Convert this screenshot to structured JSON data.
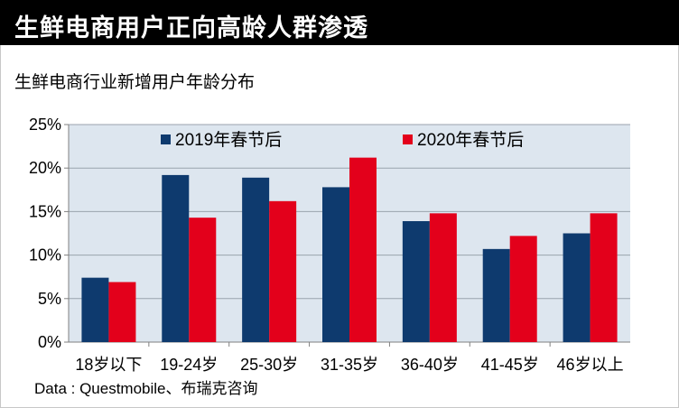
{
  "header": {
    "title": "生鲜电商用户正向高龄人群渗透"
  },
  "source": "Data : Questmobile、布瑞克咨询",
  "colors": {
    "series_2019": "#0e3a6e",
    "series_2020": "#e3001b",
    "plot_bg": "#dde6ef"
  },
  "chart_data": {
    "type": "bar",
    "title": "生鲜电商行业新增用户年龄分布",
    "xlabel": "",
    "ylabel": "",
    "categories": [
      "18岁以下",
      "19-24岁",
      "25-30岁",
      "31-35岁",
      "36-40岁",
      "41-45岁",
      "46岁以上"
    ],
    "series": [
      {
        "name": "2019年春节后",
        "values": [
          7.4,
          19.2,
          18.9,
          17.8,
          13.9,
          10.7,
          12.5
        ]
      },
      {
        "name": "2020年春节后",
        "values": [
          6.9,
          14.3,
          16.2,
          21.2,
          14.8,
          12.2,
          14.8
        ]
      }
    ],
    "ylim": [
      0,
      25
    ],
    "yticks": [
      0,
      5,
      10,
      15,
      20,
      25
    ],
    "ytick_labels": [
      "0%",
      "5%",
      "10%",
      "15%",
      "20%",
      "25%"
    ],
    "grid": true,
    "legend": "top"
  }
}
